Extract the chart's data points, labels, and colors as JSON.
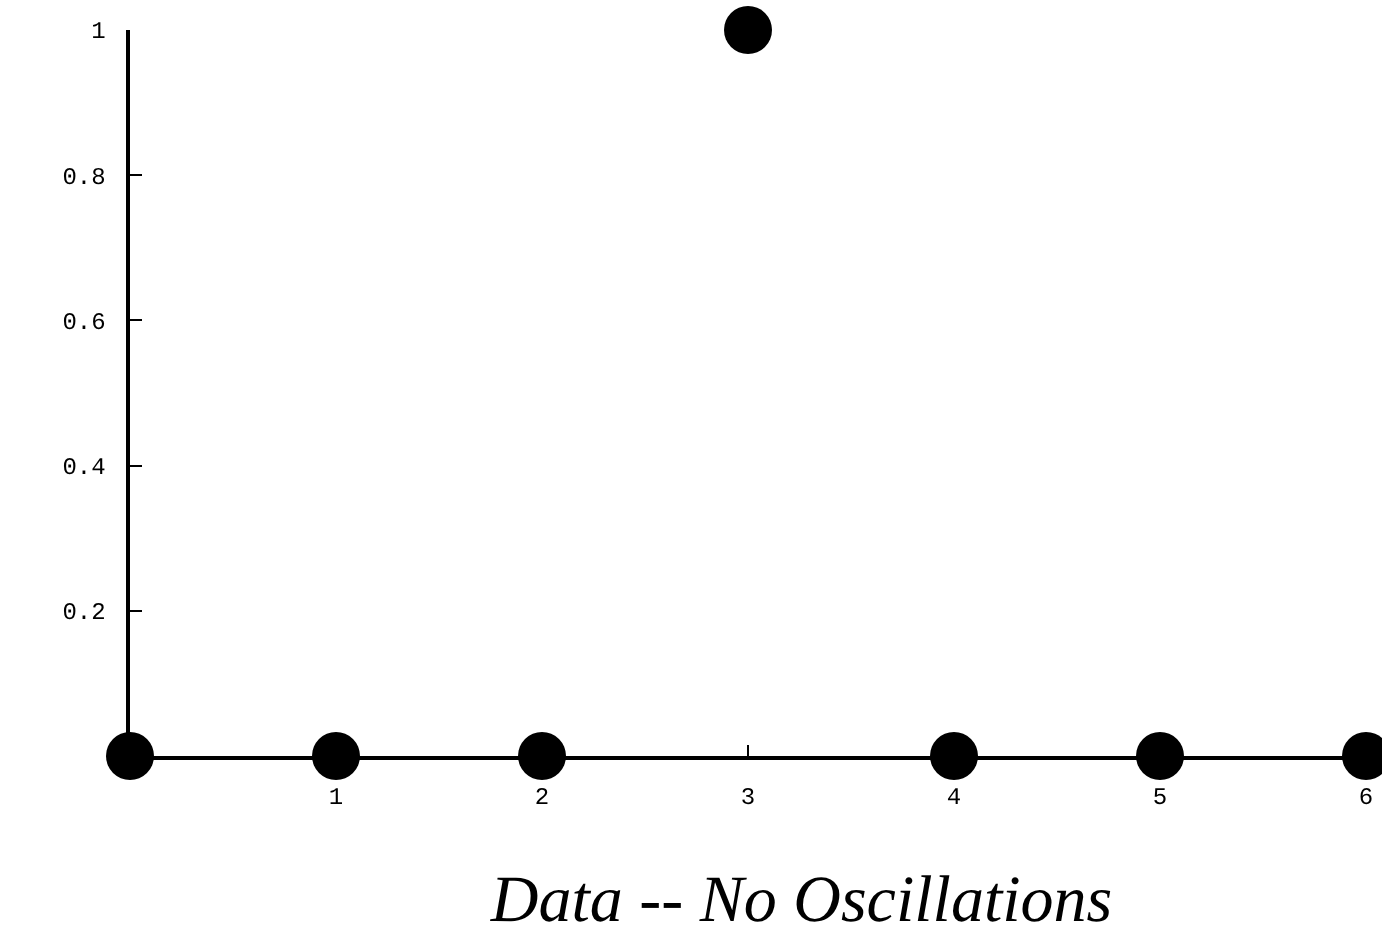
{
  "chart_data": {
    "type": "scatter",
    "title": "Data -- No Oscillations",
    "x": [
      0,
      1,
      2,
      3,
      4,
      5,
      6
    ],
    "series": [
      {
        "color": "#000000",
        "values": [
          0,
          0,
          0,
          1,
          0,
          0,
          0
        ]
      }
    ],
    "xlim": [
      0,
      6
    ],
    "xticks": [
      1,
      2,
      3,
      4,
      5,
      6
    ],
    "ylim": [
      0,
      1
    ],
    "yticks": [
      0.2,
      0.4,
      0.6,
      0.8,
      1
    ],
    "marker": "circle",
    "grid": false
  }
}
